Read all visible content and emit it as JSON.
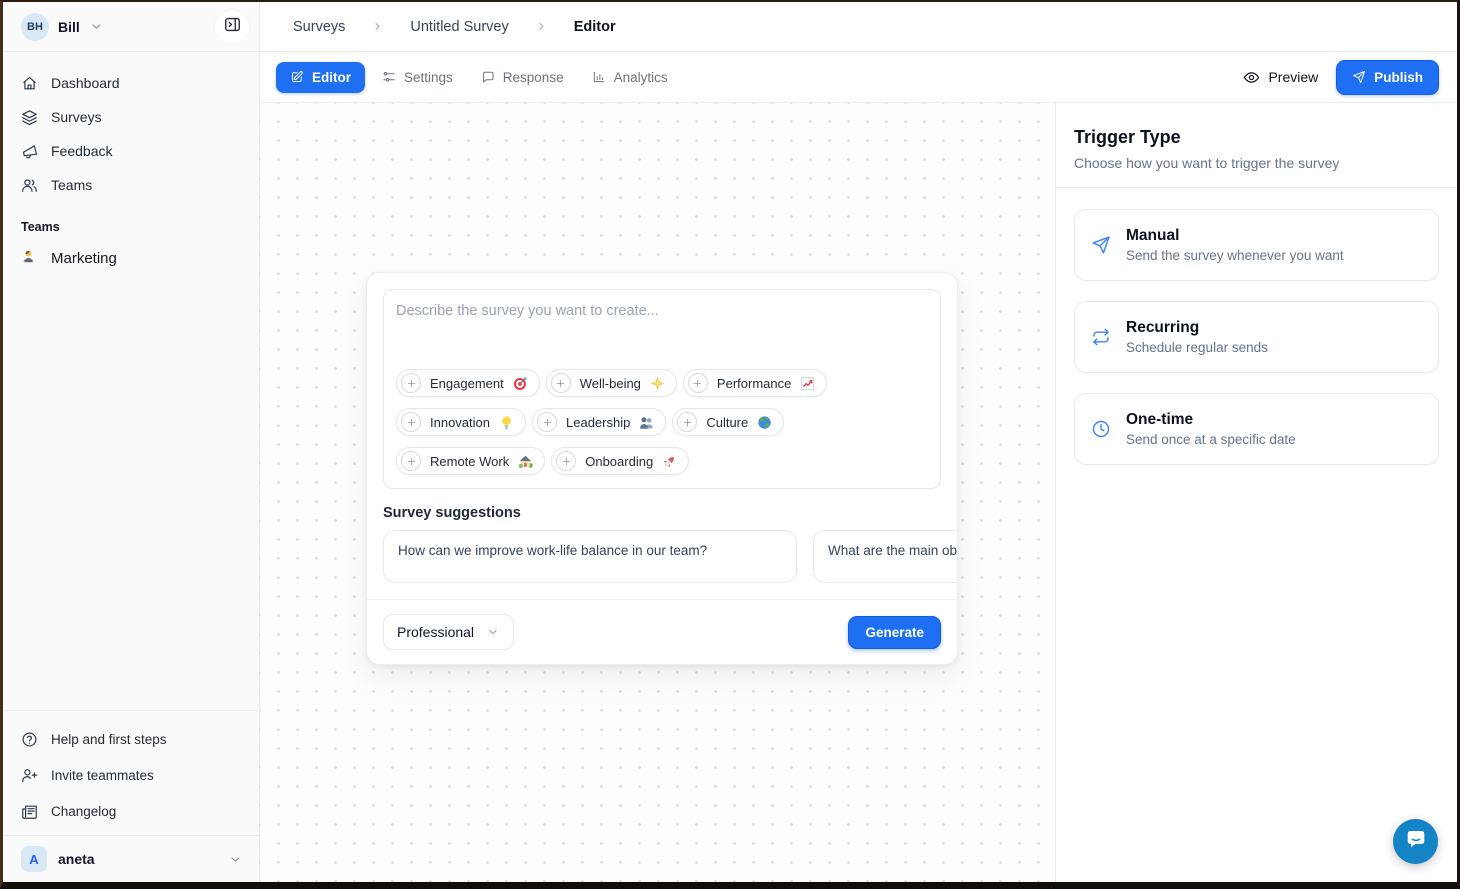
{
  "app": {
    "accent_color": "#1f6ff2",
    "chat_widget_color": "#1584c6"
  },
  "sidebar": {
    "workspace": {
      "avatar_initials": "BH",
      "name": "Bill",
      "toggle_icon": "panel-toggle"
    },
    "nav": [
      {
        "label": "Dashboard",
        "icon": "home"
      },
      {
        "label": "Surveys",
        "icon": "layers"
      },
      {
        "label": "Feedback",
        "icon": "megaphone"
      },
      {
        "label": "Teams",
        "icon": "users"
      }
    ],
    "teams_section": {
      "label": "Teams",
      "teams": [
        {
          "name": "Marketing",
          "emoji_name": "technologist"
        }
      ]
    },
    "footer_nav": [
      {
        "label": "Help and first steps",
        "icon": "help-circle"
      },
      {
        "label": "Invite teammates",
        "icon": "user-plus"
      },
      {
        "label": "Changelog",
        "icon": "newspaper"
      }
    ],
    "account": {
      "avatar_initial": "A",
      "name": "aneta"
    }
  },
  "breadcrumb": {
    "items": [
      "Surveys",
      "Untitled Survey",
      "Editor"
    ]
  },
  "toolbar": {
    "tabs": [
      {
        "label": "Editor",
        "icon": "pencil-square",
        "active": true
      },
      {
        "label": "Settings",
        "icon": "sliders",
        "active": false
      },
      {
        "label": "Response",
        "icon": "chat",
        "active": false
      },
      {
        "label": "Analytics",
        "icon": "bar-chart",
        "active": false
      }
    ],
    "preview_label": "Preview",
    "preview_icon": "eye",
    "publish_label": "Publish",
    "publish_icon": "send"
  },
  "composer": {
    "prompt_placeholder": "Describe the survey you want to create...",
    "topic_chips": [
      {
        "label": "Engagement",
        "emoji_name": "target"
      },
      {
        "label": "Well-being",
        "emoji_name": "glowing-star"
      },
      {
        "label": "Performance",
        "emoji_name": "chart-up"
      },
      {
        "label": "Innovation",
        "emoji_name": "bulb"
      },
      {
        "label": "Leadership",
        "emoji_name": "people"
      },
      {
        "label": "Culture",
        "emoji_name": "globe"
      },
      {
        "label": "Remote Work",
        "emoji_name": "house"
      },
      {
        "label": "Onboarding",
        "emoji_name": "rocket"
      }
    ],
    "suggestions_title": "Survey suggestions",
    "suggestions": [
      "How can we improve work-life balance in our team?",
      "What are the main ob"
    ],
    "tone_select": {
      "value": "Professional"
    },
    "generate_label": "Generate"
  },
  "trigger_panel": {
    "title": "Trigger Type",
    "subtitle": "Choose how you want to trigger the survey",
    "options": [
      {
        "title": "Manual",
        "description": "Send the survey whenever you want",
        "icon": "send"
      },
      {
        "title": "Recurring",
        "description": "Schedule regular sends",
        "icon": "repeat"
      },
      {
        "title": "One-time",
        "description": "Send once at a specific date",
        "icon": "clock"
      }
    ]
  }
}
